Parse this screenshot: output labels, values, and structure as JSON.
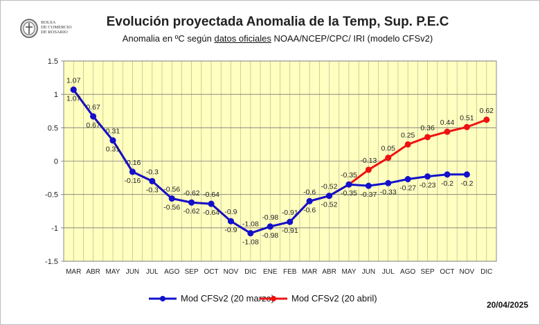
{
  "logo": {
    "text": "Bolsa de Comercio de Rosario"
  },
  "chart_data": {
    "type": "line",
    "title": "Evolución proyectada Anomalia de la Temp, Sup.  P.E.C",
    "subtitle_pre": "Anomalia en ºC según ",
    "subtitle_link": "datos oficiales",
    "subtitle_post": " NOAA/NCEP/CPC/ IRI (modelo CFSv2)",
    "categories": [
      "MAR",
      "ABR",
      "MAY",
      "JUN",
      "JUL",
      "AGO",
      "SEP",
      "OCT",
      "NOV",
      "DIC",
      "ENE",
      "FEB",
      "MAR",
      "ABR",
      "MAY",
      "JUN",
      "JUL",
      "AGO",
      "SEP",
      "OCT",
      "NOV",
      "DIC"
    ],
    "ylim": [
      -1.5,
      1.5
    ],
    "yticks": [
      1.5,
      1,
      0.5,
      0,
      -0.5,
      -1,
      -1.5
    ],
    "grid": true,
    "legend": "bottom",
    "series": [
      {
        "name": "Mod CFSv2 (20 abril)",
        "color": "#ee1111",
        "values": [
          1.07,
          0.67,
          0.31,
          -0.16,
          -0.3,
          -0.56,
          -0.62,
          -0.64,
          -0.9,
          -1.08,
          -0.98,
          -0.91,
          -0.6,
          -0.52,
          -0.35,
          -0.13,
          0.05,
          0.25,
          0.36,
          0.44,
          0.51,
          0.62
        ]
      },
      {
        "name": "Mod CFSv2 (20 marzo)",
        "color": "#1111cc",
        "values": [
          1.07,
          0.67,
          0.31,
          -0.16,
          -0.3,
          -0.56,
          -0.62,
          -0.64,
          -0.9,
          -1.08,
          -0.98,
          -0.91,
          -0.6,
          -0.52,
          -0.35,
          -0.37,
          -0.33,
          -0.27,
          -0.23,
          -0.2,
          -0.2,
          null
        ]
      }
    ],
    "plot_background": "#ffffc0"
  },
  "date": "20/04/2025"
}
